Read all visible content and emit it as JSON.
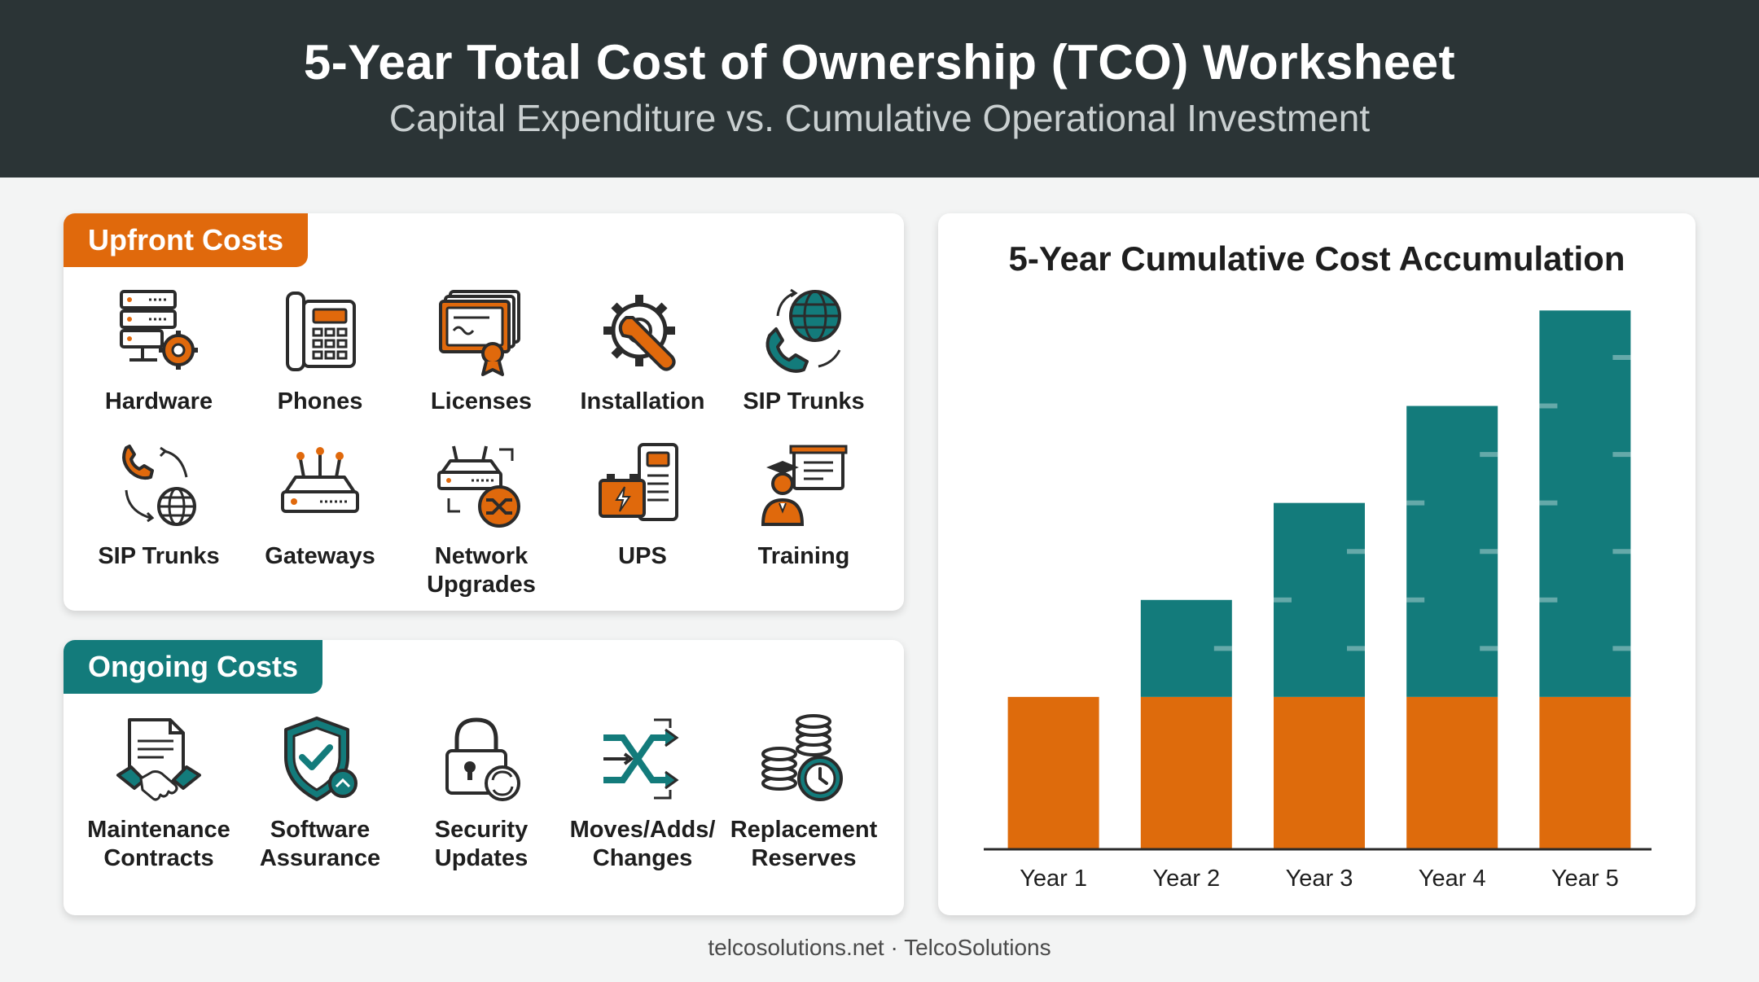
{
  "header": {
    "title": "5-Year Total Cost of Ownership (TCO) Worksheet",
    "subtitle": "Capital Expenditure vs. Cumulative Operational Investment"
  },
  "upfront": {
    "title": "Upfront Costs",
    "items": [
      {
        "label": "Hardware",
        "icon": "server-gear-icon"
      },
      {
        "label": "Phones",
        "icon": "desk-phone-icon"
      },
      {
        "label": "Licenses",
        "icon": "certificate-icon"
      },
      {
        "label": "Installation",
        "icon": "gear-wrench-icon"
      },
      {
        "label": "SIP Trunks",
        "icon": "phone-globe-icon"
      },
      {
        "label": "SIP Trunks",
        "icon": "phone-globe-arrows-icon"
      },
      {
        "label": "Gateways",
        "icon": "router-icon"
      },
      {
        "label": "Network Upgrades",
        "icon": "router-shuffle-icon"
      },
      {
        "label": "UPS",
        "icon": "battery-ups-icon"
      },
      {
        "label": "Training",
        "icon": "teacher-board-icon"
      }
    ]
  },
  "ongoing": {
    "title": "Ongoing Costs",
    "items": [
      {
        "label": "Maintenance Contracts",
        "icon": "contract-handshake-icon"
      },
      {
        "label": "Software Assurance",
        "icon": "shield-check-icon"
      },
      {
        "label": "Security Updates",
        "icon": "lock-refresh-icon"
      },
      {
        "label": "Moves/Adds/ Changes",
        "icon": "shuffle-arrows-icon"
      },
      {
        "label": "Replacement Reserves",
        "icon": "coins-clock-icon"
      }
    ]
  },
  "chart_data": {
    "type": "bar",
    "stacked": true,
    "title": "5-Year Cumulative Cost Accumulation",
    "categories": [
      "Year 1",
      "Year 2",
      "Year 3",
      "Year 4",
      "Year 5"
    ],
    "series": [
      {
        "values": [
          1,
          1,
          1,
          1,
          1
        ],
        "color": "#de6b0c"
      },
      {
        "values": [
          0,
          0.64,
          1.28,
          1.92,
          2.55
        ],
        "color": "#137b7b"
      }
    ],
    "ylim": [
      0,
      3.6
    ],
    "grid": false,
    "legend": "none"
  },
  "colors": {
    "orange": "#e0690c",
    "teal": "#137b7b",
    "dark": "#2b3436"
  },
  "footer": {
    "text": "telcosolutions.net · TelcoSolutions"
  }
}
